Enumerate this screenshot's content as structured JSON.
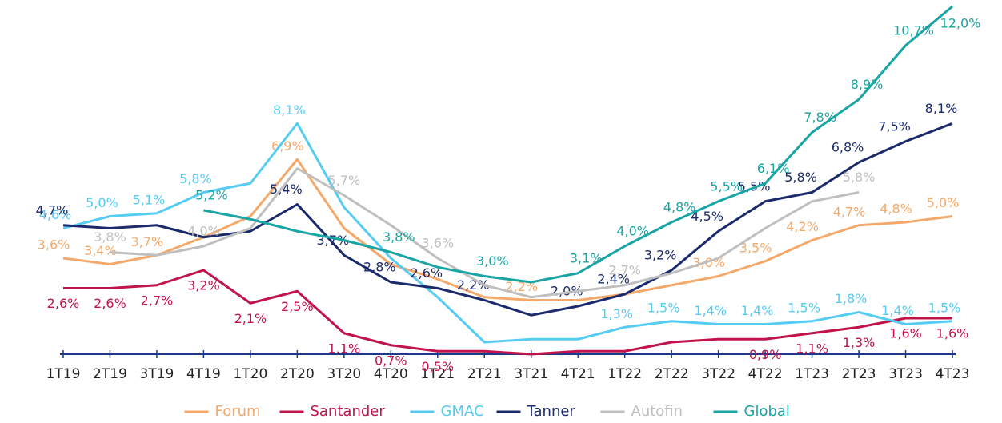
{
  "chart_data": {
    "type": "line",
    "categories": [
      "1T19",
      "2T19",
      "3T19",
      "4T19",
      "1T20",
      "2T20",
      "3T20",
      "4T20",
      "1T21",
      "2T21",
      "3T21",
      "4T21",
      "1T22",
      "2T22",
      "3T22",
      "4T22",
      "1T23",
      "2T23",
      "3T23",
      "4T23"
    ],
    "ylim": [
      0.4,
      12.0
    ],
    "series": [
      {
        "name": "Forum",
        "color": "#f4a96a",
        "values": [
          3.6,
          3.4,
          3.7,
          4.3,
          5.0,
          6.9,
          4.6,
          3.4,
          2.9,
          2.3,
          2.2,
          2.2,
          2.4,
          2.7,
          3.0,
          3.5,
          4.2,
          4.7,
          4.8,
          5.0
        ],
        "value_labels": [
          "3,6%",
          "3,4%",
          "3,7%",
          null,
          null,
          "6,9%",
          null,
          null,
          null,
          null,
          "2,2%",
          null,
          null,
          null,
          "3,0%",
          "3,5%",
          "4,2%",
          "4,7%",
          "4,8%",
          "5,0%"
        ]
      },
      {
        "name": "Santander",
        "color": "#c0144a",
        "values": [
          2.6,
          2.6,
          2.7,
          3.2,
          2.1,
          2.5,
          1.1,
          0.7,
          0.5,
          0.5,
          0.4,
          0.5,
          0.5,
          0.8,
          0.9,
          0.9,
          1.1,
          1.3,
          1.6,
          1.6
        ],
        "value_labels": [
          "2,6%",
          "2,6%",
          "2,7%",
          "3,2%",
          "2,1%",
          "2,5%",
          "1,1%",
          "0,7%",
          "0,5%",
          null,
          null,
          null,
          null,
          null,
          null,
          "0,9%",
          "1,1%",
          "1,3%",
          "1,6%",
          "1,6%"
        ]
      },
      {
        "name": "GMAC",
        "color": "#56ccf2",
        "values": [
          4.6,
          5.0,
          5.1,
          5.8,
          6.1,
          8.1,
          5.3,
          3.6,
          2.3,
          0.8,
          0.9,
          0.9,
          1.3,
          1.5,
          1.4,
          1.4,
          1.5,
          1.8,
          1.4,
          1.5
        ],
        "value_labels": [
          "4,6%",
          "5,0%",
          "5,1%",
          "5,8%",
          null,
          "8,1%",
          null,
          null,
          null,
          null,
          null,
          null,
          "1,3%",
          "1,5%",
          "1,4%",
          "1,4%",
          "1,5%",
          "1,8%",
          "1,4%",
          "1,5%"
        ]
      },
      {
        "name": "Tanner",
        "color": "#1b2a6b",
        "values": [
          4.7,
          4.6,
          4.7,
          4.3,
          4.5,
          5.4,
          3.7,
          2.8,
          2.6,
          2.2,
          1.7,
          2.0,
          2.4,
          3.2,
          4.5,
          5.5,
          5.8,
          6.8,
          7.5,
          8.1
        ],
        "value_labels": [
          "4,7%",
          null,
          null,
          null,
          null,
          "5,4%",
          "3,7%",
          "2,8%",
          "2,6%",
          "2,2%",
          null,
          "2,0%",
          "2,4%",
          "3,2%",
          "4,5%",
          "5,5%",
          "5,8%",
          "6,8%",
          "7,5%",
          "8,1%"
        ]
      },
      {
        "name": "Autofin",
        "color": "#bfbfbf",
        "values": [
          null,
          3.8,
          3.7,
          4.0,
          4.6,
          6.6,
          5.7,
          4.7,
          3.6,
          2.7,
          2.3,
          2.5,
          2.7,
          3.1,
          3.6,
          4.6,
          5.5,
          5.8,
          null,
          null
        ],
        "value_labels": [
          null,
          "3,8%",
          null,
          "4,0%",
          null,
          null,
          "5,7%",
          null,
          "3,6%",
          null,
          null,
          null,
          "2,7%",
          null,
          null,
          null,
          null,
          "5,8%",
          null,
          null
        ]
      },
      {
        "name": "Global",
        "color": "#1aa5a5",
        "values": [
          null,
          null,
          null,
          5.2,
          4.9,
          4.5,
          4.2,
          3.8,
          3.3,
          3.0,
          2.8,
          3.1,
          4.0,
          4.8,
          5.5,
          6.1,
          7.8,
          8.9,
          10.7,
          12.0
        ],
        "value_labels": [
          null,
          null,
          null,
          "5,2%",
          null,
          null,
          null,
          "3,8%",
          null,
          "3,0%",
          null,
          "3,1%",
          "4,0%",
          "4,8%",
          "5,5%",
          "6,1%",
          "7,8%",
          "8,9%",
          "10,7%",
          "12,0%"
        ]
      }
    ]
  }
}
